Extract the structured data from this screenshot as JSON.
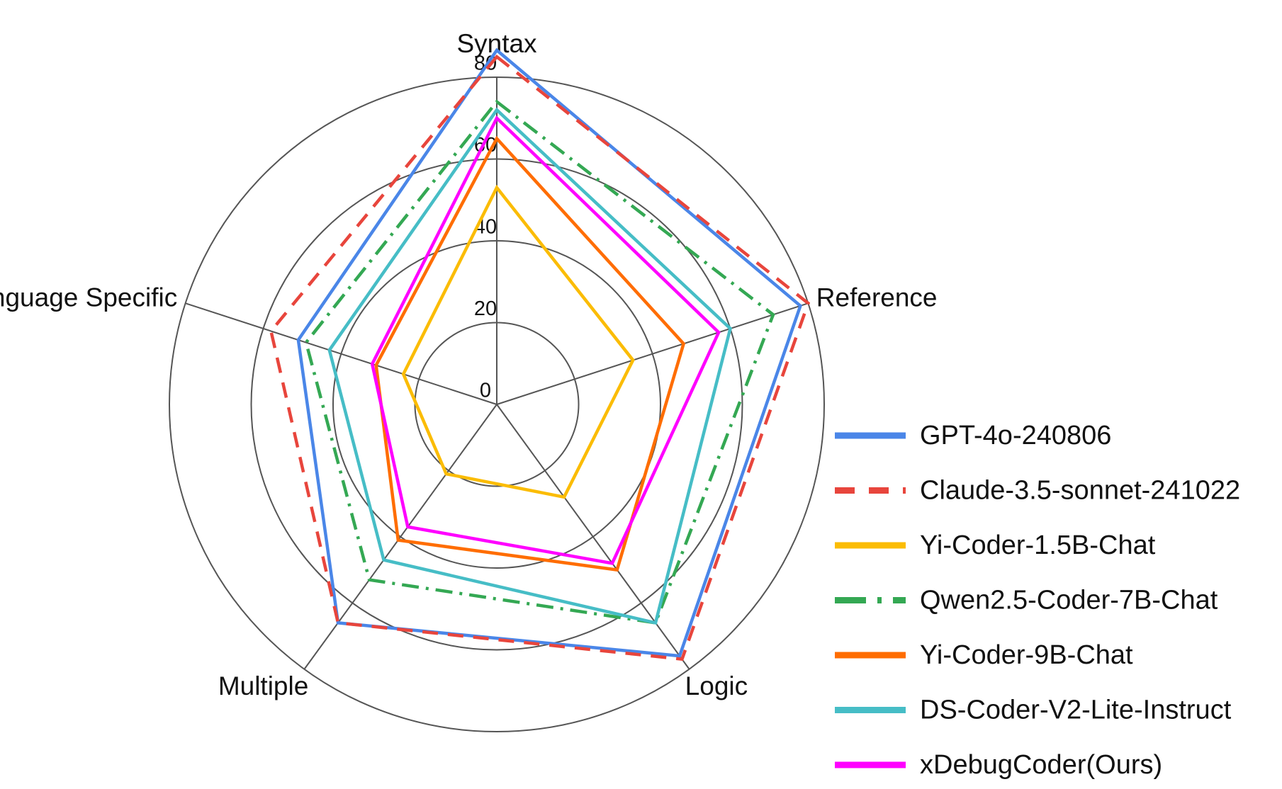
{
  "chart_data": {
    "type": "radar",
    "categories": [
      "Syntax",
      "Reference",
      "Logic",
      "Multiple",
      "Language Specific"
    ],
    "ylim": [
      0,
      80
    ],
    "yticks": [
      0,
      20,
      40,
      60,
      80
    ],
    "grid": true,
    "legend": "right",
    "series": [
      {
        "name": "GPT-4o-240806",
        "color": "#4a86e8",
        "style": "solid",
        "values": [
          86.6,
          78,
          76,
          66,
          51
        ]
      },
      {
        "name": "Claude-3.5-sonnet-241022",
        "color": "#e8453c",
        "style": "dashed",
        "values": [
          85,
          80,
          77,
          66,
          58
        ]
      },
      {
        "name": "Yi-Coder-1.5B-Chat",
        "color": "#fbbc04",
        "style": "solid",
        "values": [
          53,
          35,
          28,
          21,
          24
        ]
      },
      {
        "name": "Qwen2.5-Coder-7B-Chat",
        "color": "#34a853",
        "style": "dashdot",
        "values": [
          74,
          71,
          66,
          53,
          49
        ]
      },
      {
        "name": "Yi-Coder-9B-Chat",
        "color": "#ff6d01",
        "style": "solid",
        "values": [
          65,
          48,
          50,
          41,
          31
        ]
      },
      {
        "name": "DS-Coder-V2-Lite-Instruct",
        "color": "#46bdc6",
        "style": "solid",
        "values": [
          72,
          60,
          66,
          47,
          43
        ]
      },
      {
        "name": "xDebugCoder(Ours)",
        "color": "#ff00ff",
        "style": "solid",
        "values": [
          70,
          57,
          48,
          37,
          32
        ]
      }
    ]
  }
}
